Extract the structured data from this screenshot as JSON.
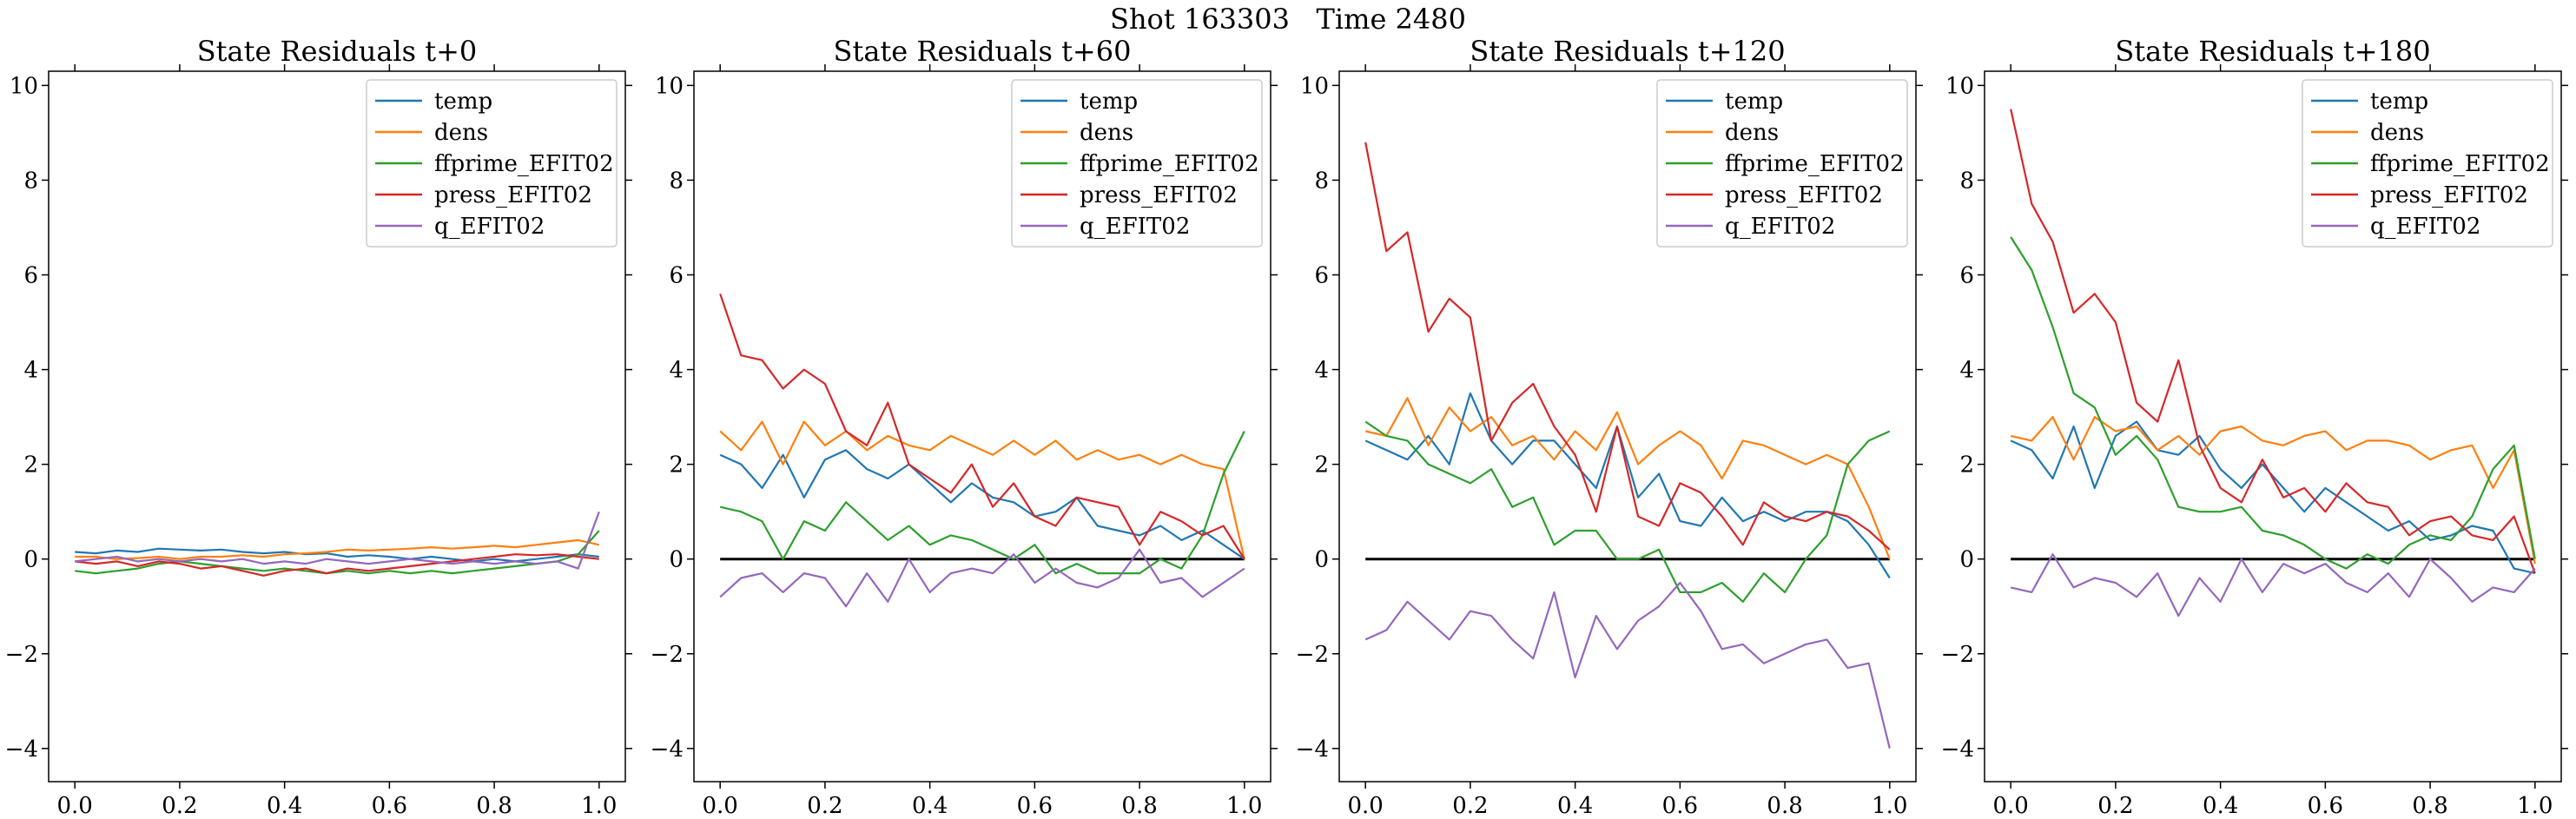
{
  "figure": {
    "suptitle": "Shot 163303   Time 2480"
  },
  "colors": {
    "temp": "#1f77b4",
    "dens": "#ff7f0e",
    "ffprime_EFIT02": "#2ca02c",
    "press_EFIT02": "#d62728",
    "q_EFIT02": "#9467bd"
  },
  "chart_data": [
    {
      "type": "line",
      "title": "State Residuals t+0",
      "xlim": [
        -0.05,
        1.05
      ],
      "ylim": [
        -4.7,
        10.3
      ],
      "xticks": [
        0.0,
        0.2,
        0.4,
        0.6,
        0.8,
        1.0
      ],
      "yticks": [
        -4,
        -2,
        0,
        2,
        4,
        6,
        8,
        10
      ],
      "legend": "top-right",
      "zero_line": false,
      "x": [
        0.0,
        0.04,
        0.08,
        0.12,
        0.16,
        0.2,
        0.24,
        0.28,
        0.32,
        0.36,
        0.4,
        0.44,
        0.48,
        0.52,
        0.56,
        0.6,
        0.64,
        0.68,
        0.72,
        0.76,
        0.8,
        0.84,
        0.88,
        0.92,
        0.96,
        1.0
      ],
      "series": [
        {
          "name": "temp",
          "values": [
            0.15,
            0.12,
            0.18,
            0.15,
            0.22,
            0.2,
            0.18,
            0.2,
            0.15,
            0.12,
            0.15,
            0.1,
            0.12,
            0.05,
            0.08,
            0.05,
            0.0,
            0.05,
            0.0,
            -0.05,
            0.0,
            -0.05,
            0.0,
            0.05,
            0.1,
            0.05
          ]
        },
        {
          "name": "dens",
          "values": [
            0.05,
            0.05,
            0.0,
            0.02,
            0.05,
            0.0,
            0.05,
            0.05,
            0.08,
            0.05,
            0.1,
            0.12,
            0.15,
            0.2,
            0.18,
            0.2,
            0.22,
            0.25,
            0.22,
            0.25,
            0.28,
            0.25,
            0.3,
            0.35,
            0.4,
            0.3
          ]
        },
        {
          "name": "ffprime_EFIT02",
          "values": [
            -0.25,
            -0.3,
            -0.25,
            -0.2,
            -0.1,
            -0.05,
            -0.1,
            -0.15,
            -0.2,
            -0.25,
            -0.2,
            -0.25,
            -0.3,
            -0.25,
            -0.3,
            -0.25,
            -0.3,
            -0.25,
            -0.3,
            -0.25,
            -0.2,
            -0.15,
            -0.1,
            -0.05,
            0.1,
            0.6
          ]
        },
        {
          "name": "press_EFIT02",
          "values": [
            -0.05,
            -0.1,
            -0.05,
            -0.15,
            -0.05,
            -0.1,
            -0.2,
            -0.15,
            -0.25,
            -0.35,
            -0.25,
            -0.2,
            -0.3,
            -0.2,
            -0.25,
            -0.2,
            -0.15,
            -0.1,
            -0.05,
            0.0,
            0.05,
            0.1,
            0.08,
            0.1,
            0.05,
            0.0
          ]
        },
        {
          "name": "q_EFIT02",
          "values": [
            -0.05,
            0.0,
            0.05,
            -0.05,
            0.0,
            -0.05,
            0.0,
            -0.05,
            0.0,
            -0.1,
            -0.05,
            -0.1,
            0.0,
            -0.05,
            -0.1,
            -0.05,
            0.0,
            -0.05,
            -0.1,
            -0.05,
            -0.1,
            -0.05,
            -0.1,
            -0.05,
            -0.2,
            1.0
          ]
        }
      ]
    },
    {
      "type": "line",
      "title": "State Residuals t+60",
      "xlim": [
        -0.05,
        1.05
      ],
      "ylim": [
        -4.7,
        10.3
      ],
      "xticks": [
        0.0,
        0.2,
        0.4,
        0.6,
        0.8,
        1.0
      ],
      "yticks": [
        -4,
        -2,
        0,
        2,
        4,
        6,
        8,
        10
      ],
      "legend": "top-right",
      "zero_line": true,
      "x": [
        0.0,
        0.04,
        0.08,
        0.12,
        0.16,
        0.2,
        0.24,
        0.28,
        0.32,
        0.36,
        0.4,
        0.44,
        0.48,
        0.52,
        0.56,
        0.6,
        0.64,
        0.68,
        0.72,
        0.76,
        0.8,
        0.84,
        0.88,
        0.92,
        0.96,
        1.0
      ],
      "series": [
        {
          "name": "temp",
          "values": [
            2.2,
            2.0,
            1.5,
            2.2,
            1.3,
            2.1,
            2.3,
            1.9,
            1.7,
            2.0,
            1.6,
            1.2,
            1.6,
            1.3,
            1.2,
            0.9,
            1.0,
            1.3,
            0.7,
            0.6,
            0.5,
            0.7,
            0.4,
            0.6,
            0.3,
            0.0
          ]
        },
        {
          "name": "dens",
          "values": [
            2.7,
            2.3,
            2.9,
            2.0,
            2.9,
            2.4,
            2.7,
            2.3,
            2.6,
            2.4,
            2.3,
            2.6,
            2.4,
            2.2,
            2.5,
            2.2,
            2.5,
            2.1,
            2.3,
            2.1,
            2.2,
            2.0,
            2.2,
            2.0,
            1.9,
            0.0
          ]
        },
        {
          "name": "ffprime_EFIT02",
          "values": [
            1.1,
            1.0,
            0.8,
            0.0,
            0.8,
            0.6,
            1.2,
            0.8,
            0.4,
            0.7,
            0.3,
            0.5,
            0.4,
            0.2,
            0.0,
            0.3,
            -0.3,
            -0.1,
            -0.3,
            -0.3,
            -0.3,
            0.0,
            -0.2,
            0.5,
            1.8,
            2.7
          ]
        },
        {
          "name": "press_EFIT02",
          "values": [
            5.6,
            4.3,
            4.2,
            3.6,
            4.0,
            3.7,
            2.7,
            2.4,
            3.3,
            2.0,
            1.7,
            1.4,
            2.0,
            1.1,
            1.6,
            0.9,
            0.7,
            1.3,
            1.2,
            1.1,
            0.3,
            1.0,
            0.8,
            0.5,
            0.7,
            0.0
          ]
        },
        {
          "name": "q_EFIT02",
          "values": [
            -0.8,
            -0.4,
            -0.3,
            -0.7,
            -0.3,
            -0.4,
            -1.0,
            -0.3,
            -0.9,
            0.0,
            -0.7,
            -0.3,
            -0.2,
            -0.3,
            0.1,
            -0.5,
            -0.2,
            -0.5,
            -0.6,
            -0.4,
            0.2,
            -0.5,
            -0.4,
            -0.8,
            -0.5,
            -0.2
          ]
        }
      ]
    },
    {
      "type": "line",
      "title": "State Residuals t+120",
      "xlim": [
        -0.05,
        1.05
      ],
      "ylim": [
        -4.7,
        10.3
      ],
      "xticks": [
        0.0,
        0.2,
        0.4,
        0.6,
        0.8,
        1.0
      ],
      "yticks": [
        -4,
        -2,
        0,
        2,
        4,
        6,
        8,
        10
      ],
      "legend": "top-right",
      "zero_line": true,
      "x": [
        0.0,
        0.04,
        0.08,
        0.12,
        0.16,
        0.2,
        0.24,
        0.28,
        0.32,
        0.36,
        0.4,
        0.44,
        0.48,
        0.52,
        0.56,
        0.6,
        0.64,
        0.68,
        0.72,
        0.76,
        0.8,
        0.84,
        0.88,
        0.92,
        0.96,
        1.0
      ],
      "series": [
        {
          "name": "temp",
          "values": [
            2.5,
            2.3,
            2.1,
            2.6,
            2.0,
            3.5,
            2.5,
            2.0,
            2.5,
            2.5,
            2.0,
            1.5,
            2.8,
            1.3,
            1.8,
            0.8,
            0.7,
            1.3,
            0.8,
            1.0,
            0.8,
            1.0,
            1.0,
            0.8,
            0.3,
            -0.4
          ]
        },
        {
          "name": "dens",
          "values": [
            2.7,
            2.6,
            3.4,
            2.4,
            3.2,
            2.7,
            3.0,
            2.4,
            2.6,
            2.1,
            2.7,
            2.3,
            3.1,
            2.0,
            2.4,
            2.7,
            2.4,
            1.7,
            2.5,
            2.4,
            2.2,
            2.0,
            2.2,
            2.0,
            1.1,
            0.0
          ]
        },
        {
          "name": "ffprime_EFIT02",
          "values": [
            2.9,
            2.6,
            2.5,
            2.0,
            1.8,
            1.6,
            1.9,
            1.1,
            1.3,
            0.3,
            0.6,
            0.6,
            0.0,
            0.0,
            0.2,
            -0.7,
            -0.7,
            -0.5,
            -0.9,
            -0.3,
            -0.7,
            0.0,
            0.5,
            2.0,
            2.5,
            2.7
          ]
        },
        {
          "name": "press_EFIT02",
          "values": [
            8.8,
            6.5,
            6.9,
            4.8,
            5.5,
            5.1,
            2.5,
            3.3,
            3.7,
            2.8,
            2.2,
            1.0,
            2.8,
            0.9,
            0.7,
            1.6,
            1.4,
            0.9,
            0.3,
            1.2,
            0.9,
            0.8,
            1.0,
            0.9,
            0.6,
            0.2
          ]
        },
        {
          "name": "q_EFIT02",
          "values": [
            -1.7,
            -1.5,
            -0.9,
            -1.3,
            -1.7,
            -1.1,
            -1.2,
            -1.7,
            -2.1,
            -0.7,
            -2.5,
            -1.2,
            -1.9,
            -1.3,
            -1.0,
            -0.5,
            -1.1,
            -1.9,
            -1.8,
            -2.2,
            -2.0,
            -1.8,
            -1.7,
            -2.3,
            -2.2,
            -4.0
          ]
        }
      ]
    },
    {
      "type": "line",
      "title": "State Residuals t+180",
      "xlim": [
        -0.05,
        1.05
      ],
      "ylim": [
        -4.7,
        10.3
      ],
      "xticks": [
        0.0,
        0.2,
        0.4,
        0.6,
        0.8,
        1.0
      ],
      "yticks": [
        -4,
        -2,
        0,
        2,
        4,
        6,
        8,
        10
      ],
      "legend": "top-right",
      "zero_line": true,
      "x": [
        0.0,
        0.04,
        0.08,
        0.12,
        0.16,
        0.2,
        0.24,
        0.28,
        0.32,
        0.36,
        0.4,
        0.44,
        0.48,
        0.52,
        0.56,
        0.6,
        0.64,
        0.68,
        0.72,
        0.76,
        0.8,
        0.84,
        0.88,
        0.92,
        0.96,
        1.0
      ],
      "series": [
        {
          "name": "temp",
          "values": [
            2.5,
            2.3,
            1.7,
            2.8,
            1.5,
            2.6,
            2.9,
            2.3,
            2.2,
            2.6,
            1.9,
            1.5,
            2.0,
            1.5,
            1.0,
            1.5,
            1.2,
            0.9,
            0.6,
            0.8,
            0.4,
            0.5,
            0.7,
            0.6,
            -0.2,
            -0.3
          ]
        },
        {
          "name": "dens",
          "values": [
            2.6,
            2.5,
            3.0,
            2.1,
            3.0,
            2.7,
            2.8,
            2.3,
            2.6,
            2.2,
            2.7,
            2.8,
            2.5,
            2.4,
            2.6,
            2.7,
            2.3,
            2.5,
            2.5,
            2.4,
            2.1,
            2.3,
            2.4,
            1.5,
            2.3,
            -0.1
          ]
        },
        {
          "name": "ffprime_EFIT02",
          "values": [
            6.8,
            6.1,
            4.9,
            3.5,
            3.2,
            2.2,
            2.6,
            2.1,
            1.1,
            1.0,
            1.0,
            1.1,
            0.6,
            0.5,
            0.3,
            0.0,
            -0.2,
            0.1,
            -0.1,
            0.3,
            0.5,
            0.4,
            0.9,
            1.9,
            2.4,
            0.0
          ]
        },
        {
          "name": "press_EFIT02",
          "values": [
            9.5,
            7.5,
            6.7,
            5.2,
            5.6,
            5.0,
            3.3,
            2.9,
            4.2,
            2.4,
            1.5,
            1.2,
            2.1,
            1.3,
            1.5,
            1.0,
            1.6,
            1.2,
            1.1,
            0.5,
            0.8,
            0.9,
            0.5,
            0.4,
            0.9,
            -0.3
          ]
        },
        {
          "name": "q_EFIT02",
          "values": [
            -0.6,
            -0.7,
            0.1,
            -0.6,
            -0.4,
            -0.5,
            -0.8,
            -0.3,
            -1.2,
            -0.4,
            -0.9,
            0.0,
            -0.7,
            -0.1,
            -0.3,
            -0.1,
            -0.5,
            -0.7,
            -0.3,
            -0.8,
            0.0,
            -0.4,
            -0.9,
            -0.6,
            -0.7,
            -0.2
          ]
        }
      ]
    }
  ]
}
